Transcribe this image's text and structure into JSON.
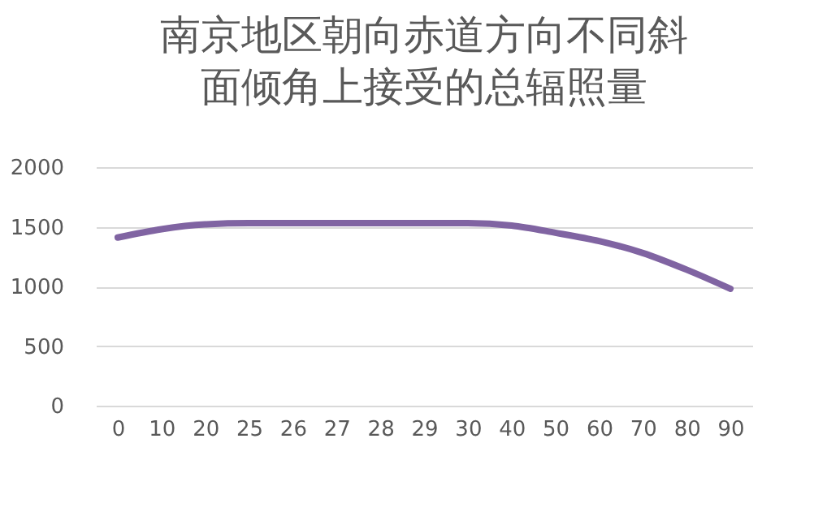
{
  "chart_data": {
    "type": "line",
    "title": [
      "南京地区朝向赤道方向不同斜",
      "面倾角上接受的总辐照量"
    ],
    "categories": [
      "0",
      "10",
      "20",
      "25",
      "26",
      "27",
      "28",
      "29",
      "30",
      "40",
      "50",
      "60",
      "70",
      "80",
      "90"
    ],
    "series": [
      {
        "color": "#8064a2",
        "values": [
          1410,
          1480,
          1520,
          1530,
          1530,
          1530,
          1530,
          1530,
          1530,
          1510,
          1450,
          1380,
          1280,
          1140,
          980
        ]
      }
    ],
    "ylim": [
      0,
      2000
    ],
    "yticks": [
      0,
      500,
      1000,
      1500,
      2000
    ],
    "grid": "y",
    "marker": "none",
    "line_style": "solid"
  }
}
